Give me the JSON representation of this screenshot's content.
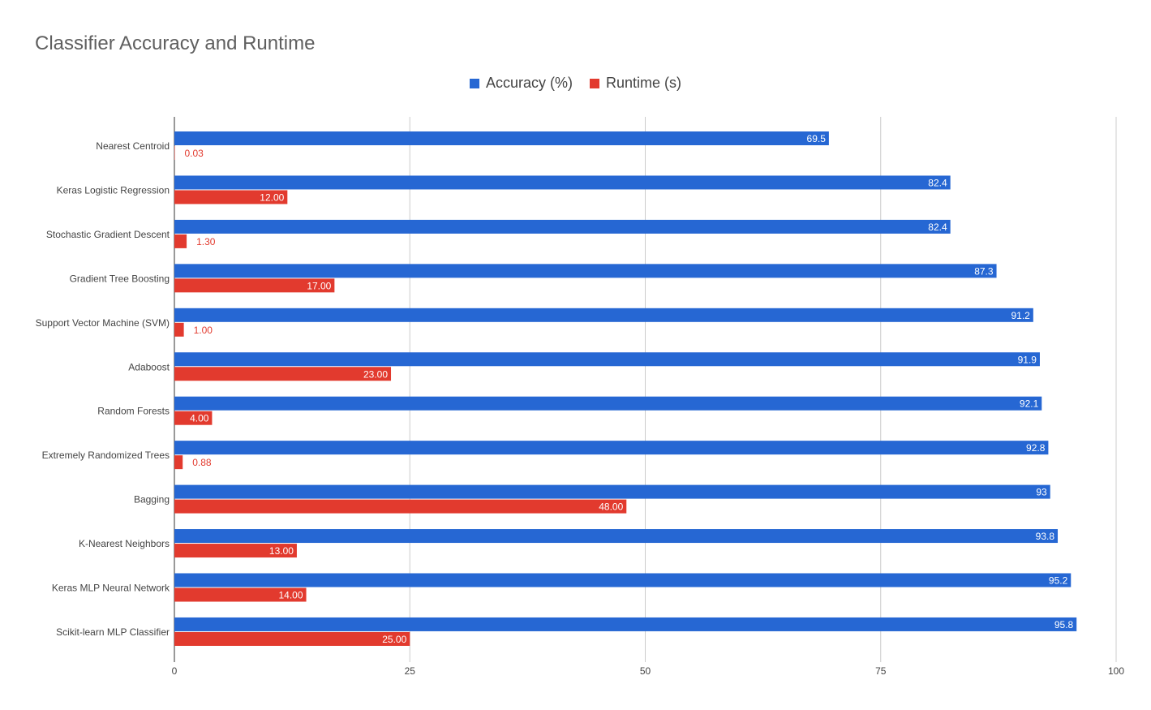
{
  "colors": {
    "accuracy": "#2667d3",
    "runtime": "#e23a2e",
    "grid": "#cccccc",
    "axis": "#333333",
    "tick_text": "#444444"
  },
  "chart_data": {
    "type": "bar",
    "orientation": "horizontal",
    "title": "Classifier Accuracy and Runtime",
    "xlabel": "",
    "ylabel": "",
    "xlim": [
      0,
      100
    ],
    "x_ticks": [
      0,
      25,
      50,
      75,
      100
    ],
    "grid": true,
    "legend_position": "top",
    "categories": [
      "Nearest Centroid",
      "Keras Logistic Regression",
      "Stochastic Gradient Descent",
      "Gradient Tree Boosting",
      "Support Vector Machine (SVM)",
      "Adaboost",
      "Random Forests",
      "Extremely Randomized Trees",
      "Bagging",
      "K-Nearest Neighbors",
      "Keras MLP Neural Network",
      "Scikit-learn MLP Classifier"
    ],
    "series": [
      {
        "name": "Accuracy (%)",
        "values": [
          69.5,
          82.4,
          82.4,
          87.3,
          91.2,
          91.9,
          92.1,
          92.8,
          93,
          93.8,
          95.2,
          95.8
        ],
        "labels": [
          "69.5",
          "82.4",
          "82.4",
          "87.3",
          "91.2",
          "91.9",
          "92.1",
          "92.8",
          "93",
          "93.8",
          "95.2",
          "95.8"
        ]
      },
      {
        "name": "Runtime (s)",
        "values": [
          0.03,
          12.0,
          1.3,
          17.0,
          1.0,
          23.0,
          4.0,
          0.88,
          48.0,
          13.0,
          14.0,
          25.0
        ],
        "labels": [
          "0.03",
          "12.00",
          "1.30",
          "17.00",
          "1.00",
          "23.00",
          "4.00",
          "0.88",
          "48.00",
          "13.00",
          "14.00",
          "25.00"
        ]
      }
    ]
  }
}
